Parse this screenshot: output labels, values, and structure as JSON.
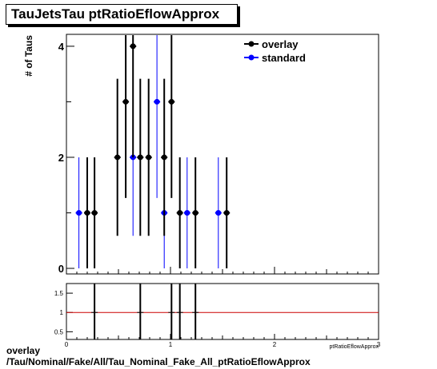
{
  "title": "TauJetsTau ptRatioEflowApprox",
  "footer": {
    "line1": "overlay",
    "line2": "/Tau/Nominal/Fake/All/Tau_Nominal_Fake_All_ptRatioEflowApprox"
  },
  "colors": {
    "overlay": "#000000",
    "standard": "#0000ff",
    "ratio_line": "#cc0000"
  },
  "chart_data": [
    {
      "type": "scatter",
      "ylabel": "# of Taus",
      "xlim": [
        0,
        3
      ],
      "ylim": [
        0,
        4.2
      ],
      "yticks": [
        0,
        2,
        4
      ],
      "legend": "top-right",
      "series": [
        {
          "name": "overlay",
          "x": [
            0.2,
            0.27,
            0.49,
            0.57,
            0.64,
            0.71,
            0.79,
            0.94,
            1.01,
            1.09,
            1.24,
            1.54
          ],
          "y": [
            1,
            1,
            2,
            3,
            4,
            2,
            2,
            2,
            3,
            1,
            1,
            1
          ]
        },
        {
          "name": "standard",
          "x": [
            0.12,
            0.64,
            0.87,
            0.94,
            1.16,
            1.46
          ],
          "y": [
            1,
            2,
            3,
            1,
            1,
            1
          ]
        }
      ]
    },
    {
      "type": "line",
      "xlabel": "ptRatioEflowApprox",
      "xlim": [
        0,
        3
      ],
      "ylim": [
        0.3,
        1.75
      ],
      "xticks": [
        0,
        1,
        2,
        3
      ],
      "yticks": [
        0.5,
        1,
        1.5
      ],
      "reference": 1,
      "error_bar_x": [
        0.27,
        0.71,
        1.01,
        1.09,
        1.24
      ]
    }
  ]
}
